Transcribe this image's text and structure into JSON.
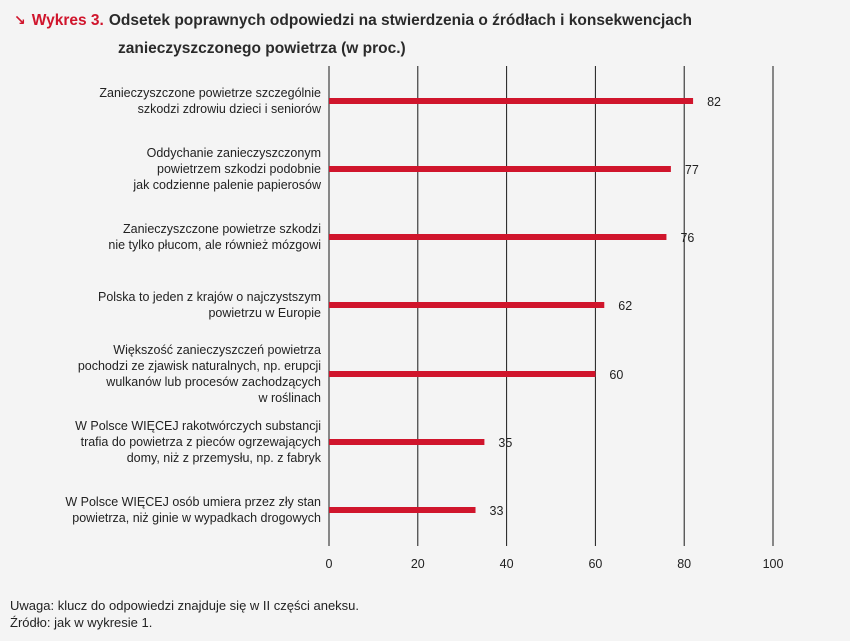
{
  "header": {
    "arrow": "↘",
    "label": "Wykres 3.",
    "title_line1": "Odsetek poprawnych odpowiedzi na stwierdzenia o źródłach i konsekwencjach",
    "title_line2": "zanieczyszczonego powietrza (w proc.)"
  },
  "notes": {
    "note": "Uwaga: klucz do odpowiedzi znajduje się w II części aneksu.",
    "source": "Źródło: jak w wykresie 1."
  },
  "colors": {
    "bar": "#d0152c",
    "grid": "#1a1a1a"
  },
  "chart_data": {
    "type": "bar",
    "orientation": "horizontal",
    "title": "Odsetek poprawnych odpowiedzi na stwierdzenia o źródłach i konsekwencjach zanieczyszczonego powietrza (w proc.)",
    "categories": [
      [
        "Zanieczyszczone powietrze szczególnie",
        "szkodzi zdrowiu dzieci i seniorów"
      ],
      [
        "Oddychanie zanieczyszczonym",
        "powietrzem szkodzi podobnie",
        "jak codzienne palenie papierosów"
      ],
      [
        "Zanieczyszczone powietrze szkodzi",
        "nie tylko płucom, ale również mózgowi"
      ],
      [
        "Polska to jeden z krajów o najczystszym",
        "powietrzu w Europie"
      ],
      [
        "Większość zanieczyszczeń powietrza",
        "pochodzi ze zjawisk naturalnych, np. erupcji",
        "wulkanów lub procesów zachodzących",
        "w roślinach"
      ],
      [
        "W Polsce WIĘCEJ rakotwórczych substancji",
        "trafia do powietrza z pieców ogrzewających",
        "domy, niż z przemysłu, np. z fabryk"
      ],
      [
        "W Polsce WIĘCEJ osób umiera przez zły stan",
        "powietrza, niż ginie w wypadkach drogowych"
      ]
    ],
    "values": [
      82,
      77,
      76,
      62,
      60,
      35,
      33
    ],
    "xlim": [
      0,
      100
    ],
    "ticks": [
      0,
      20,
      40,
      60,
      80,
      100
    ],
    "grid": true
  }
}
